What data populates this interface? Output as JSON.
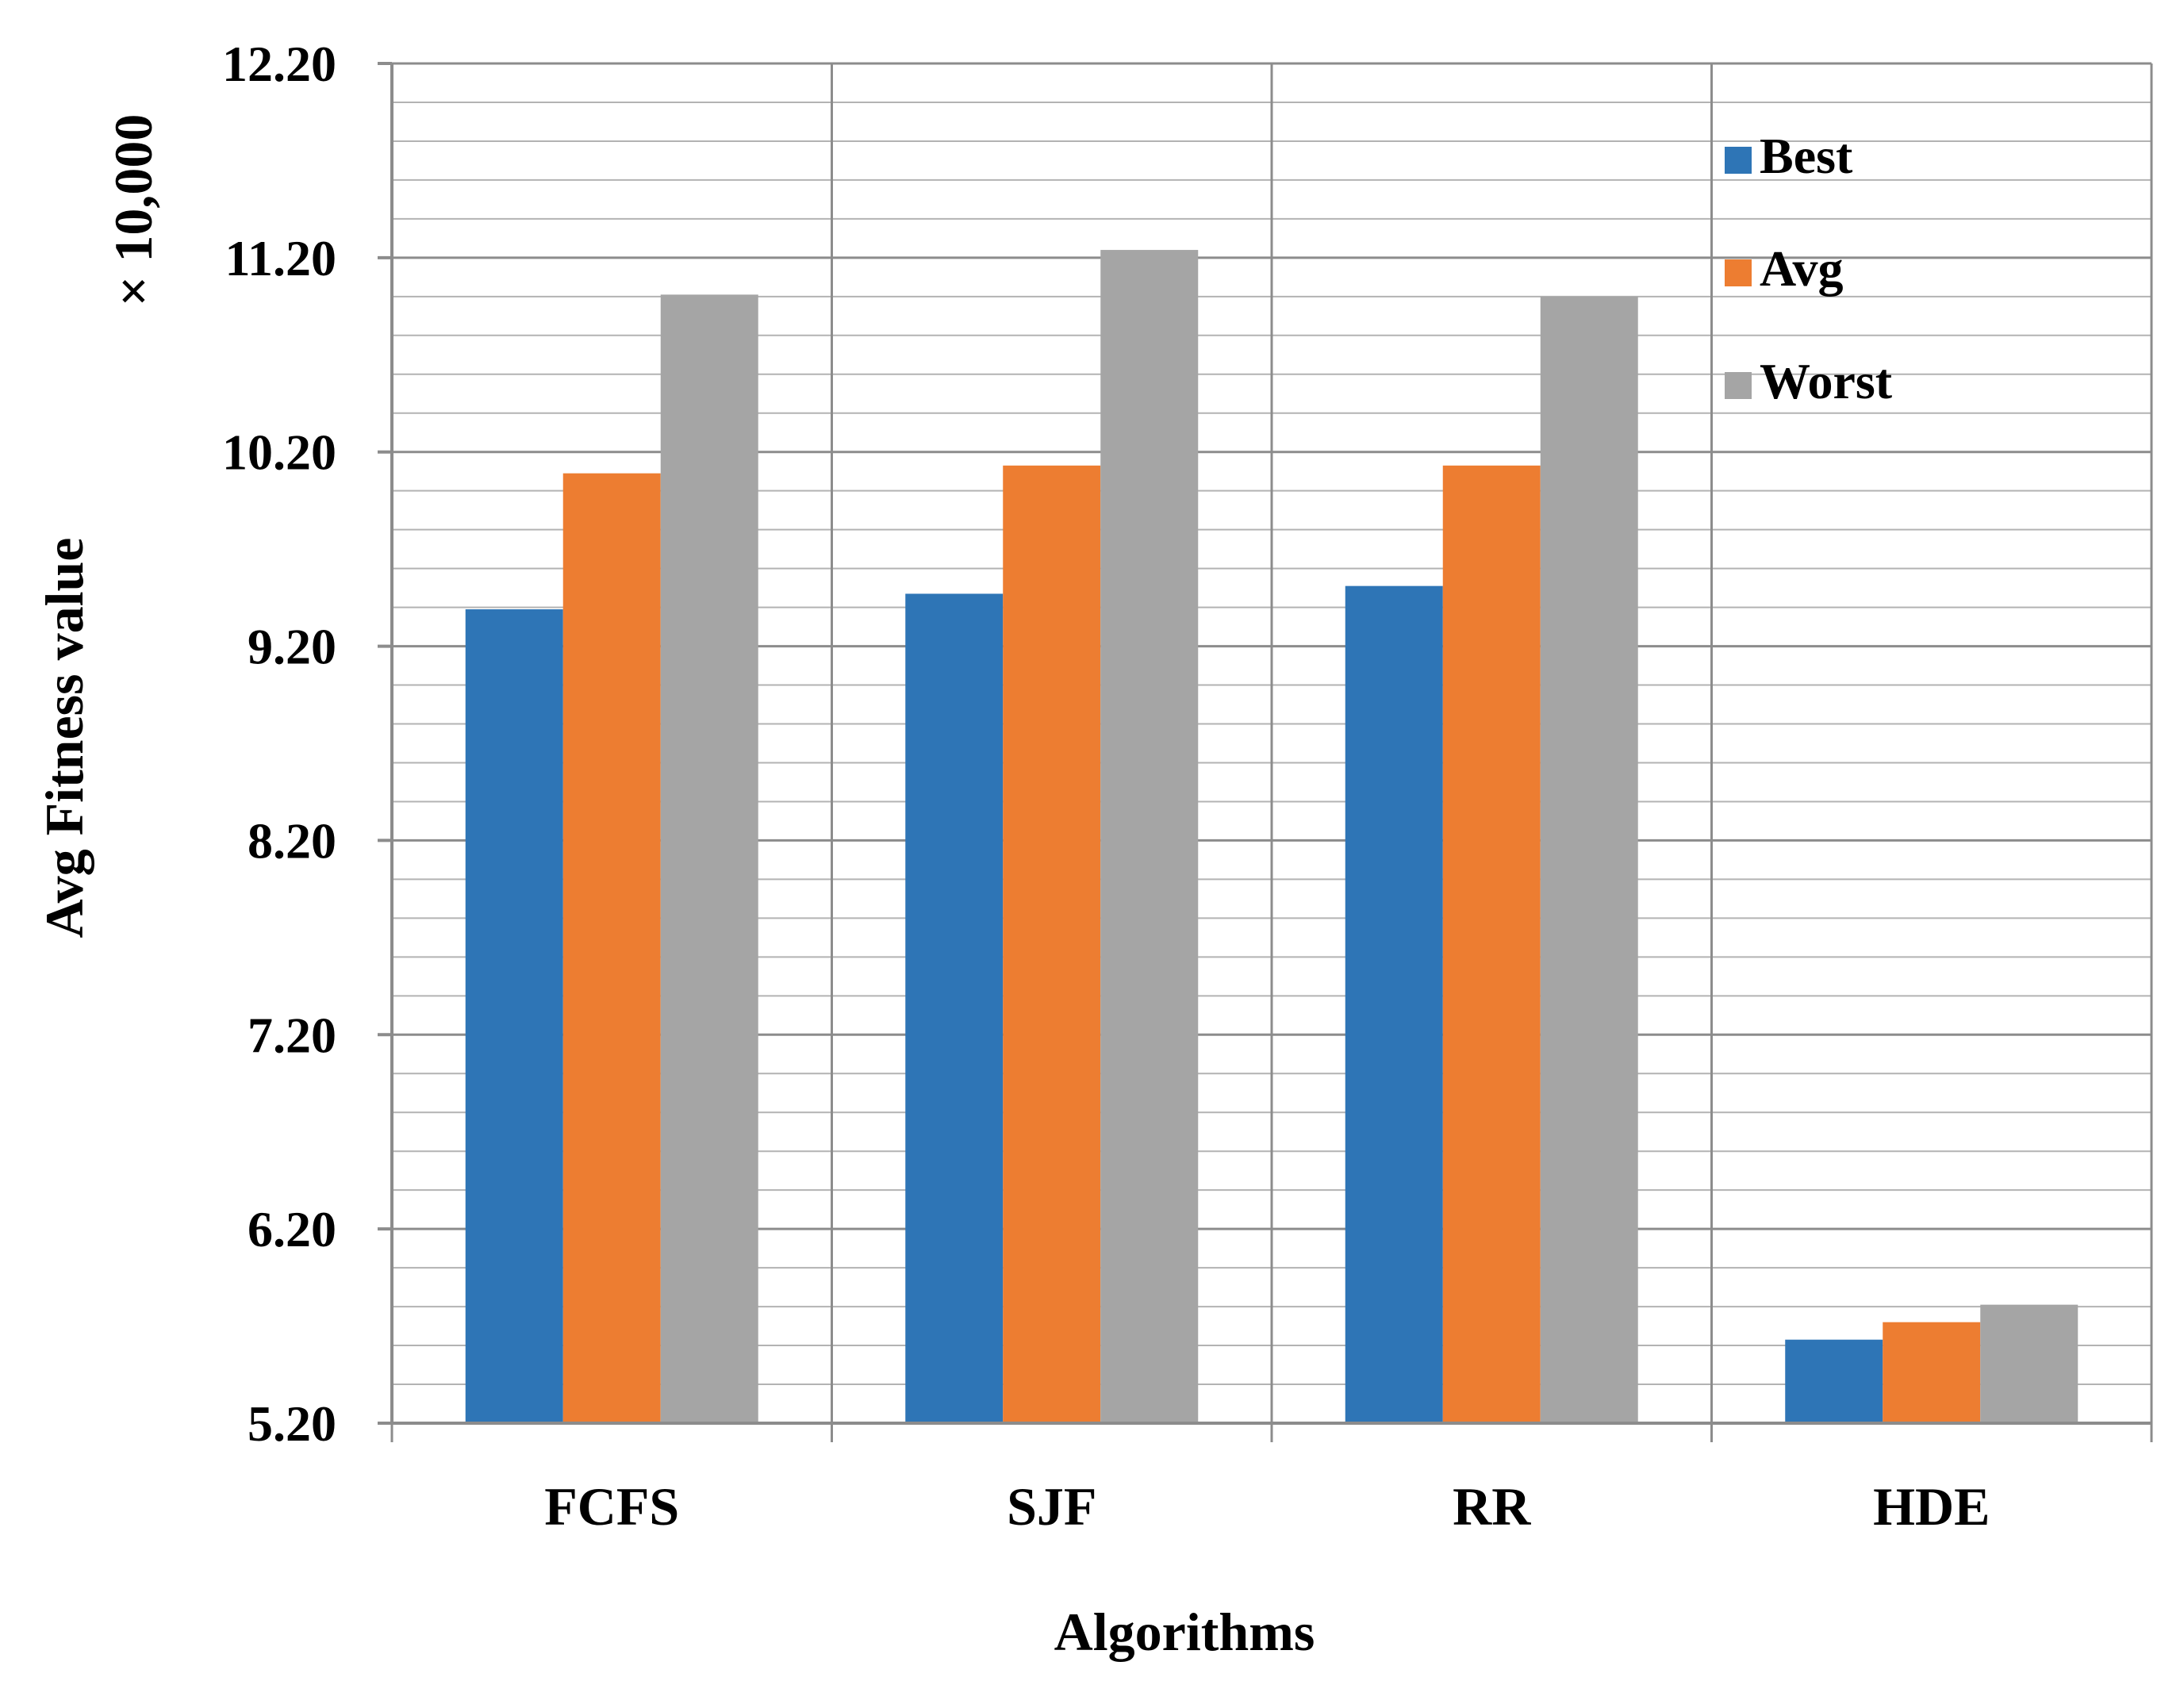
{
  "chart_data": {
    "type": "bar",
    "title": "",
    "xlabel": "Algorithms",
    "ylabel": "Avg Fitness value",
    "y_multiplier_label": "× 10,000",
    "ylim": [
      5.2,
      12.2
    ],
    "yticks": [
      "5.20",
      "6.20",
      "7.20",
      "8.20",
      "9.20",
      "10.20",
      "11.20",
      "12.20"
    ],
    "ytick_values": [
      5.2,
      6.2,
      7.2,
      8.2,
      9.2,
      10.2,
      11.2,
      12.2
    ],
    "minor_step": 0.2,
    "grid": true,
    "legend_position": "top-right",
    "categories": [
      "FCFS",
      "SJF",
      "RR",
      "HDE"
    ],
    "series": [
      {
        "name": "Best",
        "color": "#2e75b6",
        "values": [
          9.39,
          9.47,
          9.51,
          5.63
        ]
      },
      {
        "name": "Avg",
        "color": "#ed7d31",
        "values": [
          10.09,
          10.13,
          10.13,
          5.72
        ]
      },
      {
        "name": "Worst",
        "color": "#a5a5a5",
        "values": [
          11.01,
          11.24,
          11.0,
          5.81
        ]
      }
    ]
  }
}
